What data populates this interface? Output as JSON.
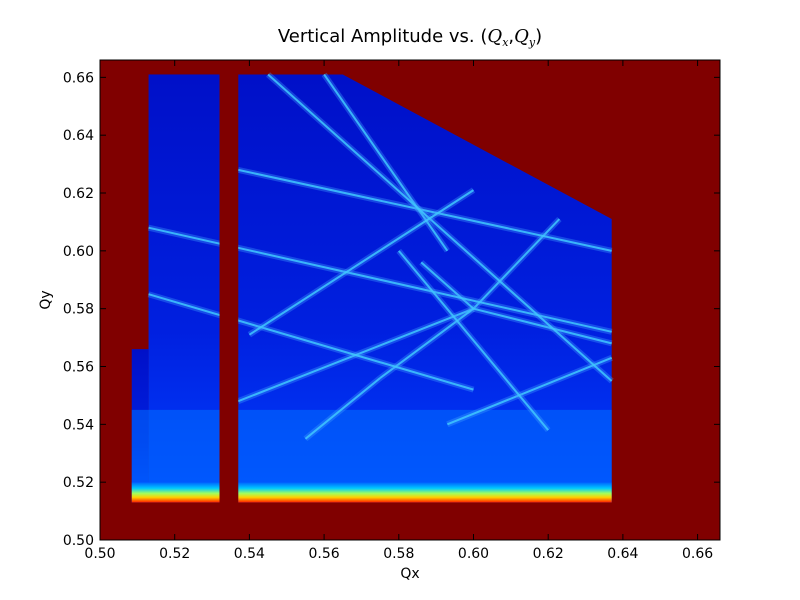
{
  "chart_data": {
    "type": "heatmap",
    "title_prefix": "Vertical Amplitude vs. ",
    "title_math": {
      "open": "(",
      "q": "Q",
      "sub_x": "x",
      "comma": ",",
      "sub_y": "y",
      "close": ")"
    },
    "xlabel": "Qx",
    "ylabel": "Qy",
    "xlim": [
      0.5,
      0.666
    ],
    "ylim": [
      0.5,
      0.666
    ],
    "xticks": [
      "0.50",
      "0.52",
      "0.54",
      "0.56",
      "0.58",
      "0.60",
      "0.62",
      "0.64",
      "0.66"
    ],
    "yticks": [
      "0.50",
      "0.52",
      "0.54",
      "0.56",
      "0.58",
      "0.60",
      "0.62",
      "0.64",
      "0.66"
    ],
    "grid": false,
    "colormap": "jet",
    "background_color": "#800000",
    "regions": {
      "main_block": {
        "qx": [
          0.537,
          0.637
        ],
        "qy": [
          0.513,
          0.661
        ]
      },
      "left_strip": {
        "qx": [
          0.513,
          0.532
        ],
        "qy": [
          0.513,
          0.661
        ]
      },
      "lower_left_extension": {
        "qx": [
          0.5085,
          0.513
        ],
        "qy": [
          0.513,
          0.566
        ]
      },
      "cutoff_corner_start": {
        "qx": 0.565,
        "qy": 0.661
      },
      "cutoff_corner_end": {
        "qx": 0.637,
        "qy": 0.611
      }
    },
    "resonance_lines": [
      {
        "from": [
          0.537,
          0.548
        ],
        "to": [
          0.6,
          0.58
        ]
      },
      {
        "from": [
          0.555,
          0.535
        ],
        "to": [
          0.575,
          0.556
        ]
      },
      {
        "from": [
          0.575,
          0.556
        ],
        "to": [
          0.6,
          0.58
        ]
      },
      {
        "from": [
          0.6,
          0.58
        ],
        "to": [
          0.623,
          0.611
        ]
      },
      {
        "from": [
          0.6,
          0.58
        ],
        "to": [
          0.586,
          0.596
        ]
      },
      {
        "from": [
          0.593,
          0.54
        ],
        "to": [
          0.637,
          0.563
        ]
      },
      {
        "from": [
          0.6,
          0.58
        ],
        "to": [
          0.637,
          0.568
        ]
      },
      {
        "from": [
          0.513,
          0.608
        ],
        "to": [
          0.637,
          0.572
        ]
      },
      {
        "from": [
          0.537,
          0.628
        ],
        "to": [
          0.637,
          0.6
        ]
      },
      {
        "from": [
          0.56,
          0.661
        ],
        "to": [
          0.593,
          0.6
        ]
      },
      {
        "from": [
          0.58,
          0.6
        ],
        "to": [
          0.62,
          0.538
        ]
      },
      {
        "from": [
          0.513,
          0.585
        ],
        "to": [
          0.6,
          0.552
        ]
      },
      {
        "from": [
          0.545,
          0.661
        ],
        "to": [
          0.637,
          0.555
        ]
      },
      {
        "from": [
          0.54,
          0.571
        ],
        "to": [
          0.6,
          0.621
        ]
      }
    ],
    "bright_band_qy": [
      0.513,
      0.52
    ],
    "secondary_band_qy": 0.545
  }
}
